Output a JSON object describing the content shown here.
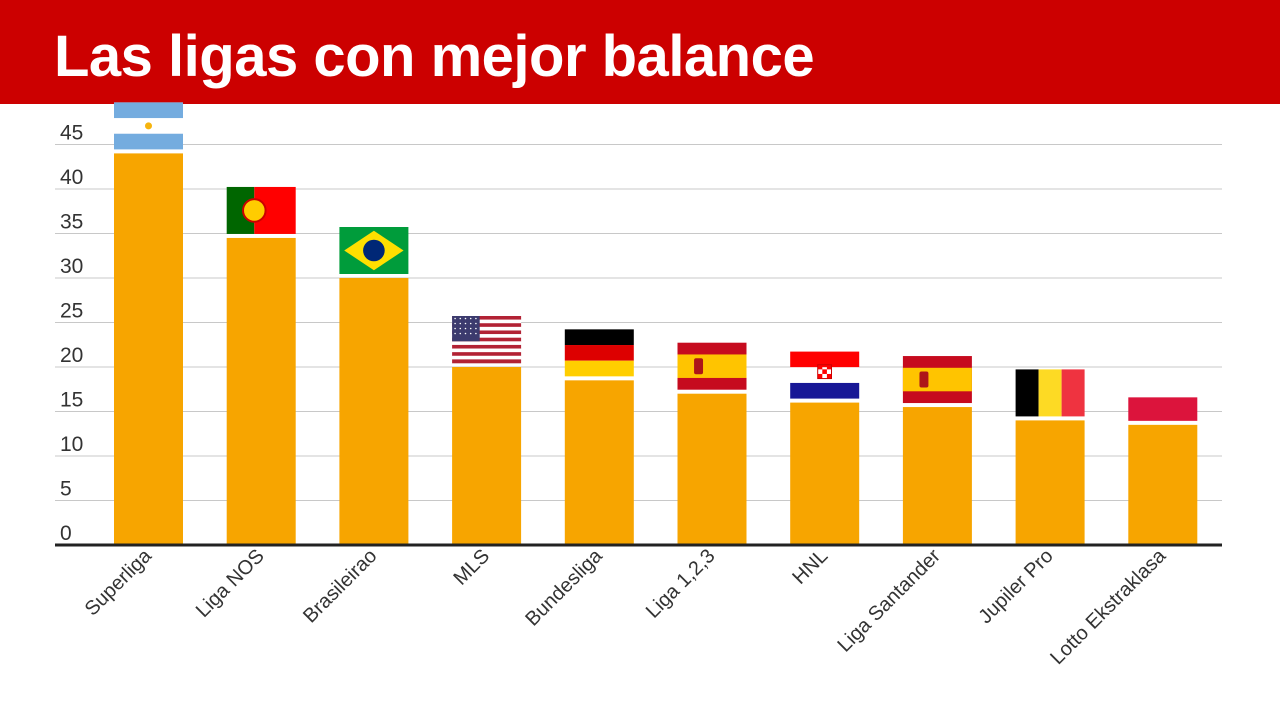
{
  "header": {
    "title": "Las ligas con mejor balance"
  },
  "chart_data": {
    "type": "bar",
    "title": "Las ligas con mejor balance",
    "categories": [
      "Superliga",
      "Liga NOS",
      "Brasileirao",
      "MLS",
      "Bundesliga",
      "Liga 1,2,3",
      "HNL",
      "Liga Santander",
      "Jupiler Pro",
      "Lotto Ekstraklasa"
    ],
    "values": [
      44,
      34.5,
      30,
      20,
      18.5,
      17,
      16,
      15.5,
      14,
      13.5
    ],
    "flags": [
      "argentina",
      "portugal",
      "brazil",
      "usa",
      "germany",
      "spain",
      "croatia",
      "spain",
      "belgium",
      "poland"
    ],
    "y_ticks": [
      0,
      5,
      10,
      15,
      20,
      25,
      30,
      35,
      40,
      45
    ],
    "ylim": [
      0,
      50
    ],
    "xlabel": "",
    "ylabel": "",
    "grid": true,
    "legend": "none",
    "colors": {
      "bar": "#f7a500",
      "grid": "#c8c8c8",
      "axis": "#222222",
      "header": "#cc0000"
    }
  }
}
